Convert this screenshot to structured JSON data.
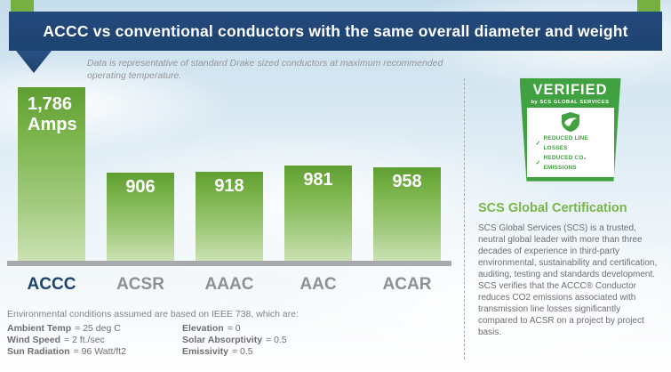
{
  "banner": {
    "title": "ACCC vs conventional conductors with the same overall diameter and weight"
  },
  "subtitle": "Data is representative of standard Drake sized conductors at maximum recommended operating temperature.",
  "chart_data": {
    "type": "bar",
    "categories": [
      "ACCC",
      "ACSR",
      "AAAC",
      "AAC",
      "ACAR"
    ],
    "values": [
      1786,
      906,
      918,
      981,
      958
    ],
    "value_labels": [
      "1,786\nAmps",
      "906",
      "918",
      "981",
      "958"
    ],
    "unit": "Amps",
    "baseline": 0,
    "title": "ACCC vs conventional conductors with the same overall diameter and weight",
    "xlabel": "",
    "ylabel": "",
    "grid": false,
    "legend": false,
    "highlighted_category": "ACCC",
    "bar_color": "#79b349"
  },
  "environment": {
    "intro": "Environmental conditions assumed are based on IEEE 738, which are:",
    "left": [
      {
        "label": "Ambient Temp",
        "value": "= 25 deg C"
      },
      {
        "label": "Wind Speed",
        "value": "= 2 ft./sec"
      },
      {
        "label": "Sun Radiation",
        "value": "= 96 Watt/ft2"
      }
    ],
    "right": [
      {
        "label": "Elevation",
        "value": "= 0"
      },
      {
        "label": "Solar Absorptivity",
        "value": "= 0.5"
      },
      {
        "label": "Emissivity",
        "value": "= 0.5"
      }
    ]
  },
  "badge": {
    "verified": "VERIFIED",
    "by": "by SCS GLOBAL SERVICES",
    "check_icon": "✓",
    "checks": [
      "REDUCED LINE LOSSES",
      "REDUCED CO₂ EMISSIONS"
    ]
  },
  "certification": {
    "heading": "SCS Global Certification",
    "body": "SCS Global Services (SCS) is a trusted, neutral global leader with more than three decades of experience in third-party environmental, sustainability and certification, auditing, testing and standards development. SCS verifies that the ACCC® Conductor reduces CO2 emissions associated with transmission line losses significantly compared to ACSR on a project by project basis."
  },
  "colors": {
    "banner_blue": "#1d4370",
    "bar_green": "#79b349",
    "badge_green": "#3fa13f",
    "accent_label_blue": "#1d4370",
    "text_gray": "#6d6e71"
  }
}
